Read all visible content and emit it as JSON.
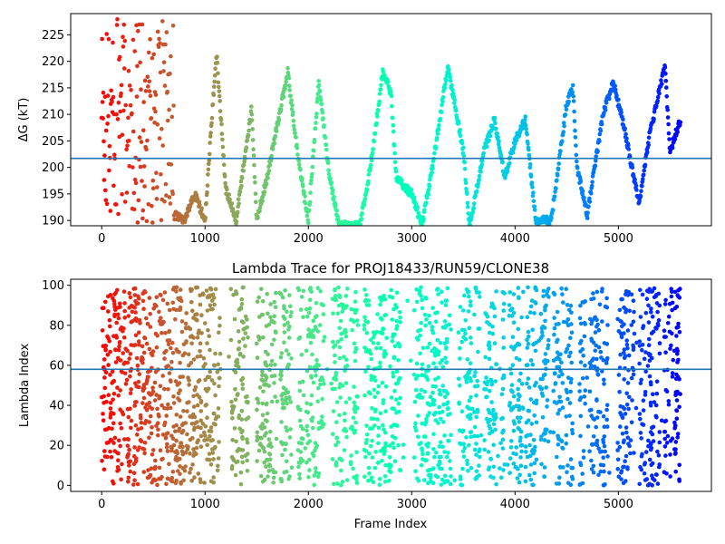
{
  "chart_data": [
    {
      "type": "scatter",
      "title": "",
      "xlabel": "",
      "ylabel": "ΔG (kT)",
      "xlim": [
        -300,
        5900
      ],
      "ylim": [
        189,
        229
      ],
      "xticks": [
        0,
        1000,
        2000,
        3000,
        4000,
        5000
      ],
      "yticks": [
        190,
        195,
        200,
        205,
        210,
        215,
        220,
        225
      ],
      "hline": 201.7,
      "colormap": "rainbow",
      "color_by": "frame index",
      "x_max_data": 5600,
      "trace_knots": [
        [
          0,
          200
        ],
        [
          100,
          210
        ],
        [
          200,
          218
        ],
        [
          300,
          205
        ],
        [
          400,
          215
        ],
        [
          500,
          200
        ],
        [
          650,
          208
        ],
        [
          700,
          191
        ],
        [
          800,
          190
        ],
        [
          900,
          195
        ],
        [
          1000,
          190
        ],
        [
          1110,
          222
        ],
        [
          1200,
          196
        ],
        [
          1300,
          190
        ],
        [
          1450,
          211
        ],
        [
          1500,
          190
        ],
        [
          1600,
          198
        ],
        [
          1800,
          218
        ],
        [
          1900,
          202
        ],
        [
          2000,
          190
        ],
        [
          2100,
          216
        ],
        [
          2200,
          199
        ],
        [
          2300,
          189
        ],
        [
          2500,
          189
        ],
        [
          2600,
          200
        ],
        [
          2720,
          218
        ],
        [
          2800,
          214
        ],
        [
          2850,
          198
        ],
        [
          3000,
          195
        ],
        [
          3100,
          189
        ],
        [
          3200,
          200
        ],
        [
          3350,
          219
        ],
        [
          3500,
          203
        ],
        [
          3560,
          189
        ],
        [
          3700,
          203
        ],
        [
          3800,
          209
        ],
        [
          3900,
          198
        ],
        [
          4000,
          205
        ],
        [
          4100,
          209
        ],
        [
          4200,
          190
        ],
        [
          4350,
          190
        ],
        [
          4500,
          212
        ],
        [
          4560,
          215
        ],
        [
          4600,
          200
        ],
        [
          4700,
          191
        ],
        [
          4850,
          210
        ],
        [
          4950,
          216
        ],
        [
          5050,
          208
        ],
        [
          5200,
          193
        ],
        [
          5300,
          206
        ],
        [
          5450,
          219
        ],
        [
          5500,
          203
        ],
        [
          5600,
          209
        ]
      ]
    },
    {
      "type": "scatter",
      "title": "Lambda Trace for PROJ18433/RUN59/CLONE38",
      "xlabel": "Frame Index",
      "ylabel": "Lambda Index",
      "xlim": [
        -300,
        5900
      ],
      "ylim": [
        -3,
        103
      ],
      "xticks": [
        0,
        1000,
        2000,
        3000,
        4000,
        5000
      ],
      "yticks": [
        0,
        20,
        40,
        60,
        80,
        100
      ],
      "hline": 58,
      "colormap": "rainbow",
      "color_by": "frame index",
      "x_max_data": 5600,
      "lambda_range": [
        0,
        99
      ]
    }
  ]
}
